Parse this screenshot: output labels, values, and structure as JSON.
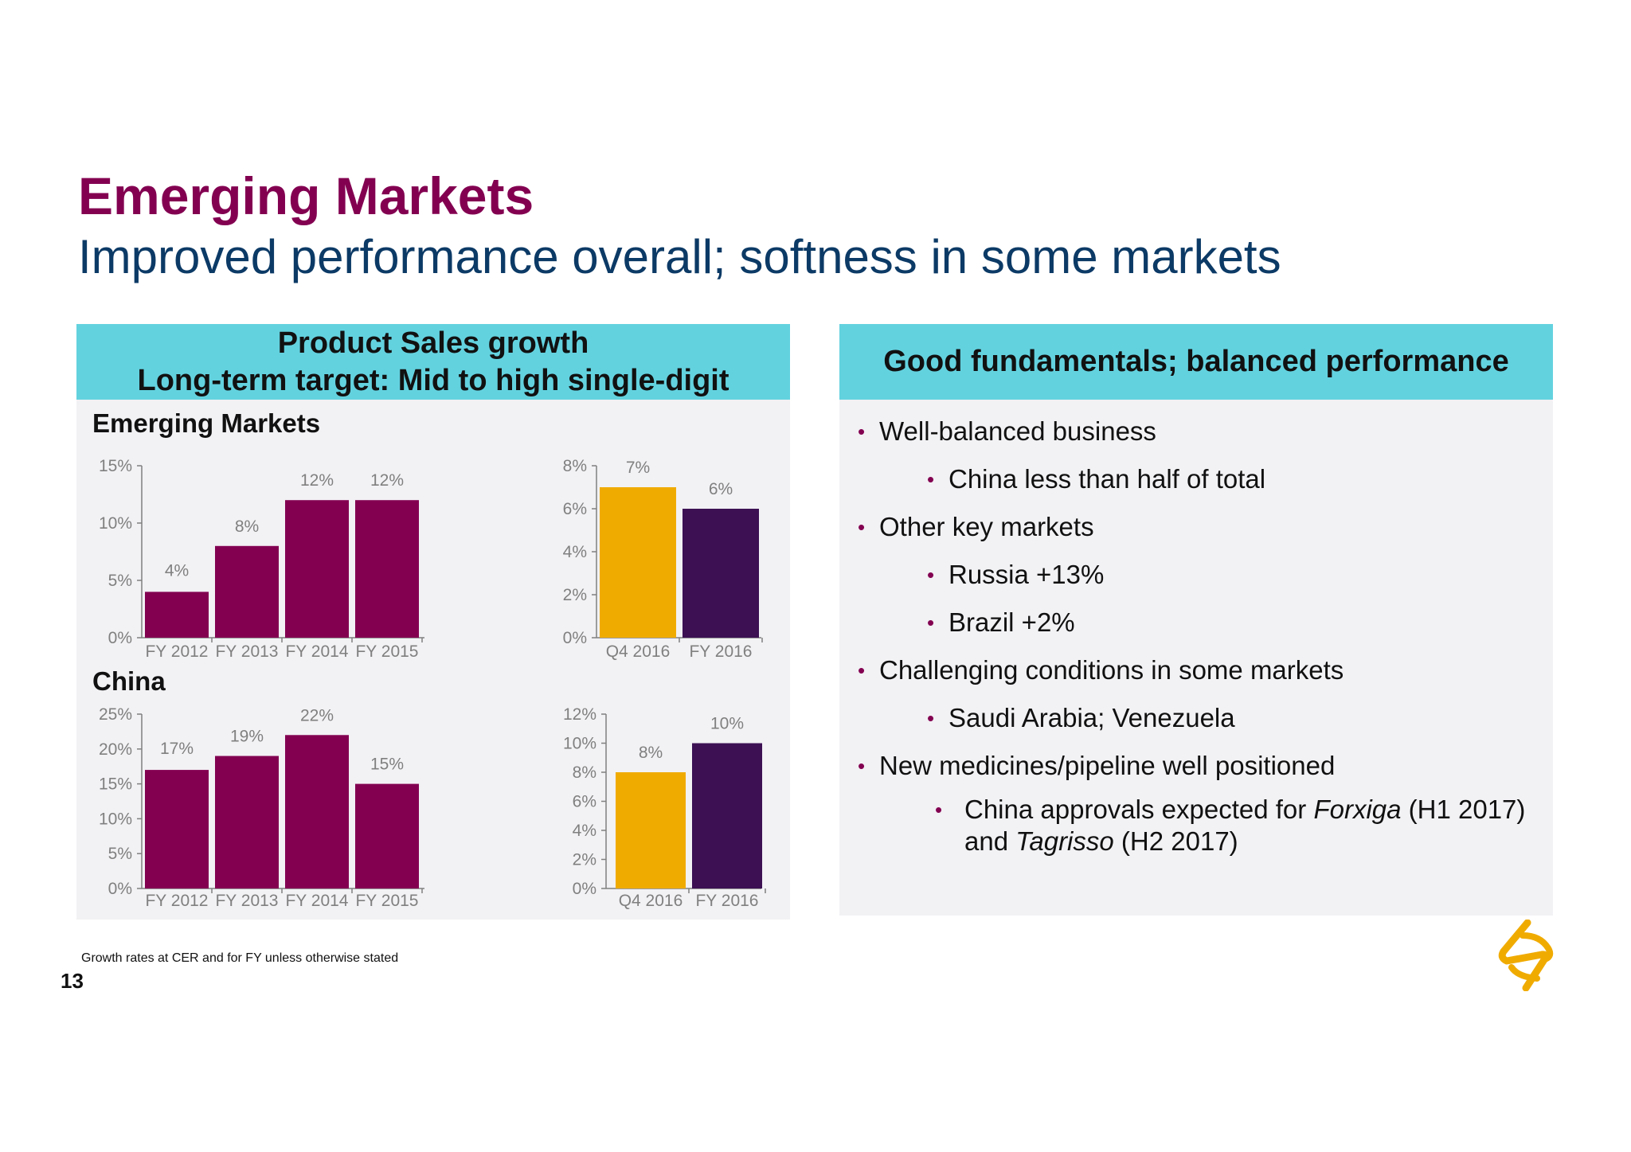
{
  "title": "Emerging Markets",
  "subtitle": "Improved performance overall; softness in some markets",
  "left_panel": {
    "header_line1": "Product Sales growth",
    "header_line2": "Long-term target: Mid to high single-digit",
    "section1_label": "Emerging Markets",
    "section2_label": "China"
  },
  "right_panel": {
    "header": "Good fundamentals; balanced performance",
    "bullets": [
      {
        "text": "Well-balanced business",
        "level": 1
      },
      {
        "text": "China less than half of total",
        "level": 2
      },
      {
        "text": "Other key markets",
        "level": 1
      },
      {
        "text": "Russia +13%",
        "level": 2
      },
      {
        "text": "Brazil +2%",
        "level": 2
      },
      {
        "text": "Challenging conditions in some markets",
        "level": 1
      },
      {
        "text": "Saudi Arabia; Venezuela",
        "level": 2
      },
      {
        "text": "New medicines/pipeline well positioned",
        "level": 1
      }
    ],
    "last_bullet": {
      "pre": "China approvals expected for ",
      "em1": "Forxiga",
      "mid": " (H1 2017)",
      "line2_pre": "and ",
      "em2": "Tagrisso",
      "line2_post": " (H2 2017)"
    }
  },
  "footnote": "Growth rates at CER and for FY unless otherwise stated",
  "page_number": "13",
  "colors": {
    "title": "#830051",
    "subtitle": "#0c3a66",
    "header_bg": "#63d2df",
    "panel_bg": "#f2f1f4",
    "bar_fy": "#830051",
    "bar_q4": "#f0ab00",
    "bar_fy2016": "#3c1053",
    "logo": "#f0ab00"
  },
  "chart_data": [
    {
      "id": "em-annual",
      "type": "bar",
      "group": "Emerging Markets",
      "categories": [
        "FY 2012",
        "FY 2013",
        "FY 2014",
        "FY 2015"
      ],
      "values": [
        4,
        8,
        12,
        12
      ],
      "data_labels": [
        "4%",
        "8%",
        "12%",
        "12%"
      ],
      "yticks": [
        "0%",
        "5%",
        "10%",
        "15%"
      ],
      "ylim": [
        0,
        15
      ],
      "colors": [
        "#830051",
        "#830051",
        "#830051",
        "#830051"
      ]
    },
    {
      "id": "em-2016",
      "type": "bar",
      "group": "Emerging Markets",
      "categories": [
        "Q4 2016",
        "FY 2016"
      ],
      "values": [
        7,
        6
      ],
      "data_labels": [
        "7%",
        "6%"
      ],
      "yticks": [
        "0%",
        "2%",
        "4%",
        "6%",
        "8%"
      ],
      "ylim": [
        0,
        8
      ],
      "colors": [
        "#f0ab00",
        "#3c1053"
      ]
    },
    {
      "id": "china-annual",
      "type": "bar",
      "group": "China",
      "categories": [
        "FY 2012",
        "FY 2013",
        "FY 2014",
        "FY 2015"
      ],
      "values": [
        17,
        19,
        22,
        15
      ],
      "data_labels": [
        "17%",
        "19%",
        "22%",
        "15%"
      ],
      "yticks": [
        "0%",
        "5%",
        "10%",
        "15%",
        "20%",
        "25%"
      ],
      "ylim": [
        0,
        25
      ],
      "colors": [
        "#830051",
        "#830051",
        "#830051",
        "#830051"
      ]
    },
    {
      "id": "china-2016",
      "type": "bar",
      "group": "China",
      "categories": [
        "Q4 2016",
        "FY 2016"
      ],
      "values": [
        8,
        10
      ],
      "data_labels": [
        "8%",
        "10%"
      ],
      "yticks": [
        "0%",
        "2%",
        "4%",
        "6%",
        "8%",
        "10%",
        "12%"
      ],
      "ylim": [
        0,
        12
      ],
      "colors": [
        "#f0ab00",
        "#3c1053"
      ]
    }
  ]
}
